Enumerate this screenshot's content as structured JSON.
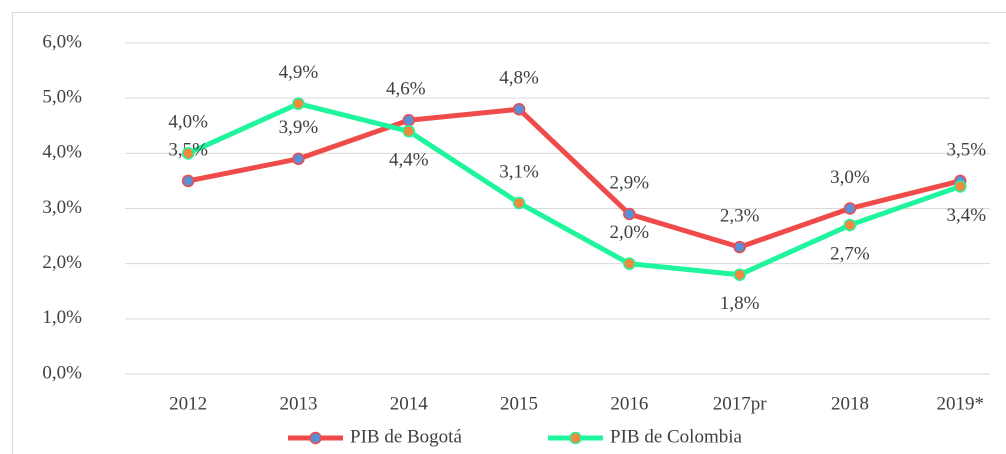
{
  "chart_data": {
    "type": "line",
    "categories": [
      "2012",
      "2013",
      "2014",
      "2015",
      "2016",
      "2017pr",
      "2018",
      "2019*"
    ],
    "series": [
      {
        "name": "PIB de Bogotá",
        "color": "#f04b4b",
        "marker_color": "#5b8fd4",
        "values": [
          3.5,
          3.9,
          4.6,
          4.8,
          2.9,
          2.3,
          3.0,
          3.5
        ],
        "value_labels": [
          "3,5%",
          "3,9%",
          "4,6%",
          "4,8%",
          "2,9%",
          "2,3%",
          "3,0%",
          "3,5%"
        ]
      },
      {
        "name": "PIB de Colombia",
        "color": "#1ef59c",
        "marker_color": "#f08a3c",
        "values": [
          4.0,
          4.9,
          4.4,
          3.1,
          2.0,
          1.8,
          2.7,
          3.4
        ],
        "value_labels": [
          "4,0%",
          "4,9%",
          "4,4%",
          "3,1%",
          "2,0%",
          "1,8%",
          "2,7%",
          "3,4%"
        ]
      }
    ],
    "ylim": [
      0,
      6
    ],
    "yticks": [
      {
        "value": 0,
        "label": "0,0%"
      },
      {
        "value": 1,
        "label": "1,0%"
      },
      {
        "value": 2,
        "label": "2,0%"
      },
      {
        "value": 3,
        "label": "3,0%"
      },
      {
        "value": 4,
        "label": "4,0%"
      },
      {
        "value": 5,
        "label": "5,0%"
      },
      {
        "value": 6,
        "label": "6,0%"
      }
    ],
    "grid": true,
    "legend": "bottom"
  }
}
